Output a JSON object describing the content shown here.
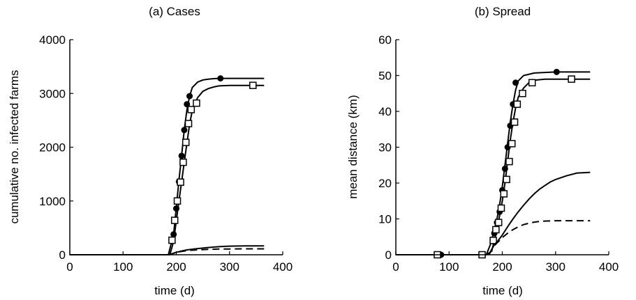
{
  "chart_data": [
    {
      "type": "line",
      "title": "(a) Cases",
      "xlabel": "time (d)",
      "ylabel": "cumulative no. infected farms",
      "xlim": [
        0,
        400
      ],
      "ylim": [
        0,
        4000
      ],
      "xticks": [
        0,
        100,
        200,
        300,
        400
      ],
      "yticks": [
        0,
        1000,
        2000,
        3000,
        4000
      ],
      "xtick_labels": [
        "0",
        "100",
        "200",
        "300",
        "400"
      ],
      "ytick_labels": [
        "0",
        "1000",
        "2000",
        "3000",
        "4000"
      ],
      "grid": false,
      "series": [
        {
          "style": "solid",
          "marker": "filled-circle",
          "x": [
            0,
            185,
            195,
            200,
            205,
            210,
            215,
            220,
            225,
            230,
            240,
            250,
            260,
            270,
            280,
            300,
            365
          ],
          "y": [
            0,
            0,
            380,
            880,
            1380,
            1840,
            2320,
            2700,
            2950,
            3110,
            3210,
            3250,
            3265,
            3275,
            3280,
            3280,
            3280
          ],
          "marker_x": [
            195,
            200,
            205,
            210,
            215,
            220,
            225,
            283
          ],
          "marker_y": [
            380,
            860,
            1360,
            1840,
            2320,
            2800,
            2950,
            3280
          ]
        },
        {
          "style": "solid",
          "marker": "open-square",
          "x": [
            0,
            188,
            195,
            200,
            205,
            210,
            215,
            220,
            225,
            230,
            240,
            250,
            260,
            270,
            280,
            300,
            365
          ],
          "y": [
            0,
            0,
            250,
            630,
            1000,
            1350,
            1720,
            2080,
            2430,
            2680,
            2920,
            3040,
            3090,
            3120,
            3140,
            3150,
            3150
          ],
          "marker_x": [
            192,
            197,
            202,
            208,
            213,
            218,
            223,
            228,
            238,
            344
          ],
          "marker_y": [
            270,
            640,
            1000,
            1350,
            1720,
            2090,
            2440,
            2700,
            2820,
            3150
          ]
        },
        {
          "style": "solid",
          "marker": "none",
          "x": [
            185,
            190,
            195,
            200,
            210,
            220,
            240,
            260,
            280,
            300,
            330,
            365
          ],
          "y": [
            0,
            10,
            30,
            45,
            70,
            90,
            115,
            135,
            150,
            160,
            165,
            165
          ]
        },
        {
          "style": "dashed",
          "marker": "none",
          "x": [
            185,
            190,
            195,
            200,
            210,
            220,
            240,
            260,
            280,
            300,
            330,
            365
          ],
          "y": [
            0,
            10,
            28,
            42,
            62,
            78,
            92,
            100,
            106,
            108,
            110,
            110
          ]
        }
      ]
    },
    {
      "type": "line",
      "title": "(b) Spread",
      "xlabel": "time (d)",
      "ylabel": "mean distance (km)",
      "xlim": [
        0,
        400
      ],
      "ylim": [
        0,
        60
      ],
      "xticks": [
        0,
        100,
        200,
        300,
        400
      ],
      "yticks": [
        0,
        10,
        20,
        30,
        40,
        50,
        60
      ],
      "xtick_labels": [
        "0",
        "100",
        "200",
        "300",
        "400"
      ],
      "ytick_labels": [
        "0",
        "10",
        "20",
        "30",
        "40",
        "50",
        "60"
      ],
      "grid": false,
      "series": [
        {
          "style": "solid",
          "marker": "filled-circle",
          "x": [
            0,
            170,
            178,
            185,
            190,
            195,
            200,
            205,
            210,
            215,
            220,
            225,
            230,
            240,
            260,
            300,
            365
          ],
          "y": [
            0,
            0,
            3,
            7,
            10,
            14,
            19,
            25,
            31,
            37,
            42,
            46,
            48.5,
            50,
            50.7,
            51,
            51
          ],
          "marker_x": [
            85,
            185,
            190,
            195,
            200,
            205,
            210,
            215,
            220,
            225,
            302
          ],
          "marker_y": [
            0,
            6,
            9,
            12,
            18,
            24,
            30,
            36,
            42,
            48,
            51
          ]
        },
        {
          "style": "solid",
          "marker": "open-square",
          "x": [
            0,
            170,
            180,
            185,
            190,
            195,
            200,
            205,
            210,
            215,
            220,
            225,
            230,
            240,
            250,
            260,
            280,
            300,
            365
          ],
          "y": [
            0,
            0,
            1,
            4,
            7,
            11,
            15,
            20,
            26,
            32,
            37,
            41,
            44,
            46.5,
            48,
            48.7,
            49,
            49,
            49
          ],
          "marker_x": [
            78,
            162,
            183,
            188,
            193,
            198,
            203,
            208,
            213,
            218,
            223,
            228,
            238,
            256,
            330
          ],
          "marker_y": [
            0,
            0,
            4,
            7,
            9,
            13,
            17,
            21,
            26,
            31,
            37,
            42,
            45,
            48,
            49
          ]
        },
        {
          "style": "solid",
          "marker": "none",
          "x": [
            175,
            180,
            185,
            190,
            195,
            200,
            210,
            220,
            230,
            240,
            250,
            260,
            270,
            280,
            290,
            300,
            320,
            340,
            365
          ],
          "y": [
            0,
            1.5,
            2.8,
            3.6,
            4.5,
            5.5,
            7.8,
            10,
            12,
            13.8,
            15.5,
            17,
            18.3,
            19.3,
            20.3,
            21,
            22,
            22.8,
            23
          ]
        },
        {
          "style": "dashed",
          "marker": "none",
          "x": [
            175,
            180,
            185,
            190,
            195,
            200,
            210,
            220,
            230,
            240,
            250,
            260,
            270,
            280,
            300,
            320,
            365
          ],
          "y": [
            0,
            1.5,
            2.5,
            3.3,
            4,
            4.8,
            6,
            7,
            7.8,
            8.4,
            8.8,
            9.1,
            9.3,
            9.4,
            9.5,
            9.5,
            9.5
          ]
        }
      ]
    }
  ]
}
